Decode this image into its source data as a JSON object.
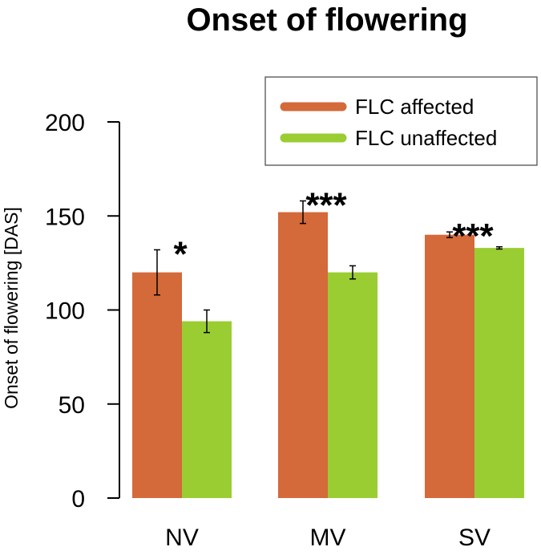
{
  "chart_data": {
    "type": "bar",
    "title": "Onset of flowering",
    "xlabel": "",
    "ylabel": "Onset of flowering [DAS]",
    "ylim": [
      0,
      200
    ],
    "yticks": [
      "0",
      "50",
      "100",
      "150",
      "200"
    ],
    "categories": [
      "NV",
      "MV",
      "SV"
    ],
    "series": [
      {
        "name": "FLC affected",
        "color": "#d4693a",
        "values": [
          120,
          152,
          140
        ],
        "errors": [
          12,
          6,
          1.5
        ]
      },
      {
        "name": "FLC unaffected",
        "color": "#9acd32",
        "values": [
          94,
          120,
          133
        ],
        "errors": [
          6,
          3.5,
          0.6
        ]
      }
    ],
    "significance": [
      "*",
      "***",
      "***"
    ],
    "legend_position": "top-right",
    "grid": false
  }
}
